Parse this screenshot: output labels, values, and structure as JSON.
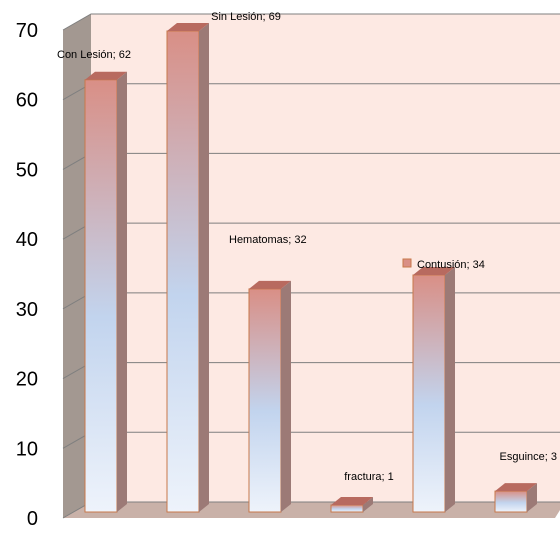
{
  "chart_data": {
    "type": "bar",
    "style": "3d-column",
    "categories": [
      "Con Lesión",
      "Sin Lesión",
      "Hematomas",
      "fractura",
      "Contusión",
      "Esguince"
    ],
    "values": [
      62,
      69,
      32,
      1,
      34,
      3
    ],
    "data_labels": [
      "Con Lesión; 62",
      "Sin Lesión; 69",
      "Hematomas; 32",
      "fractura; 1",
      "Contusión; 34",
      "Esguince; 3"
    ],
    "title": "",
    "xlabel": "",
    "ylabel": "",
    "ylim": [
      0,
      70
    ],
    "yticks": [
      "0",
      "10",
      "20",
      "30",
      "40",
      "50",
      "60",
      "70"
    ],
    "grid": true,
    "legend": "none",
    "colors": {
      "wall_back": "#fde9e3",
      "wall_side": "#a39891",
      "floor": "#c9b1a8",
      "bar_top": "#d98f86",
      "bar_mid": "#c2d4ee",
      "bar_bottom": "#eef3fb",
      "bar_side": "#9c7a76",
      "bar_cap": "#b86a5f",
      "bar_outline": "#c8784a",
      "gridline": "#7f7f7f"
    }
  }
}
